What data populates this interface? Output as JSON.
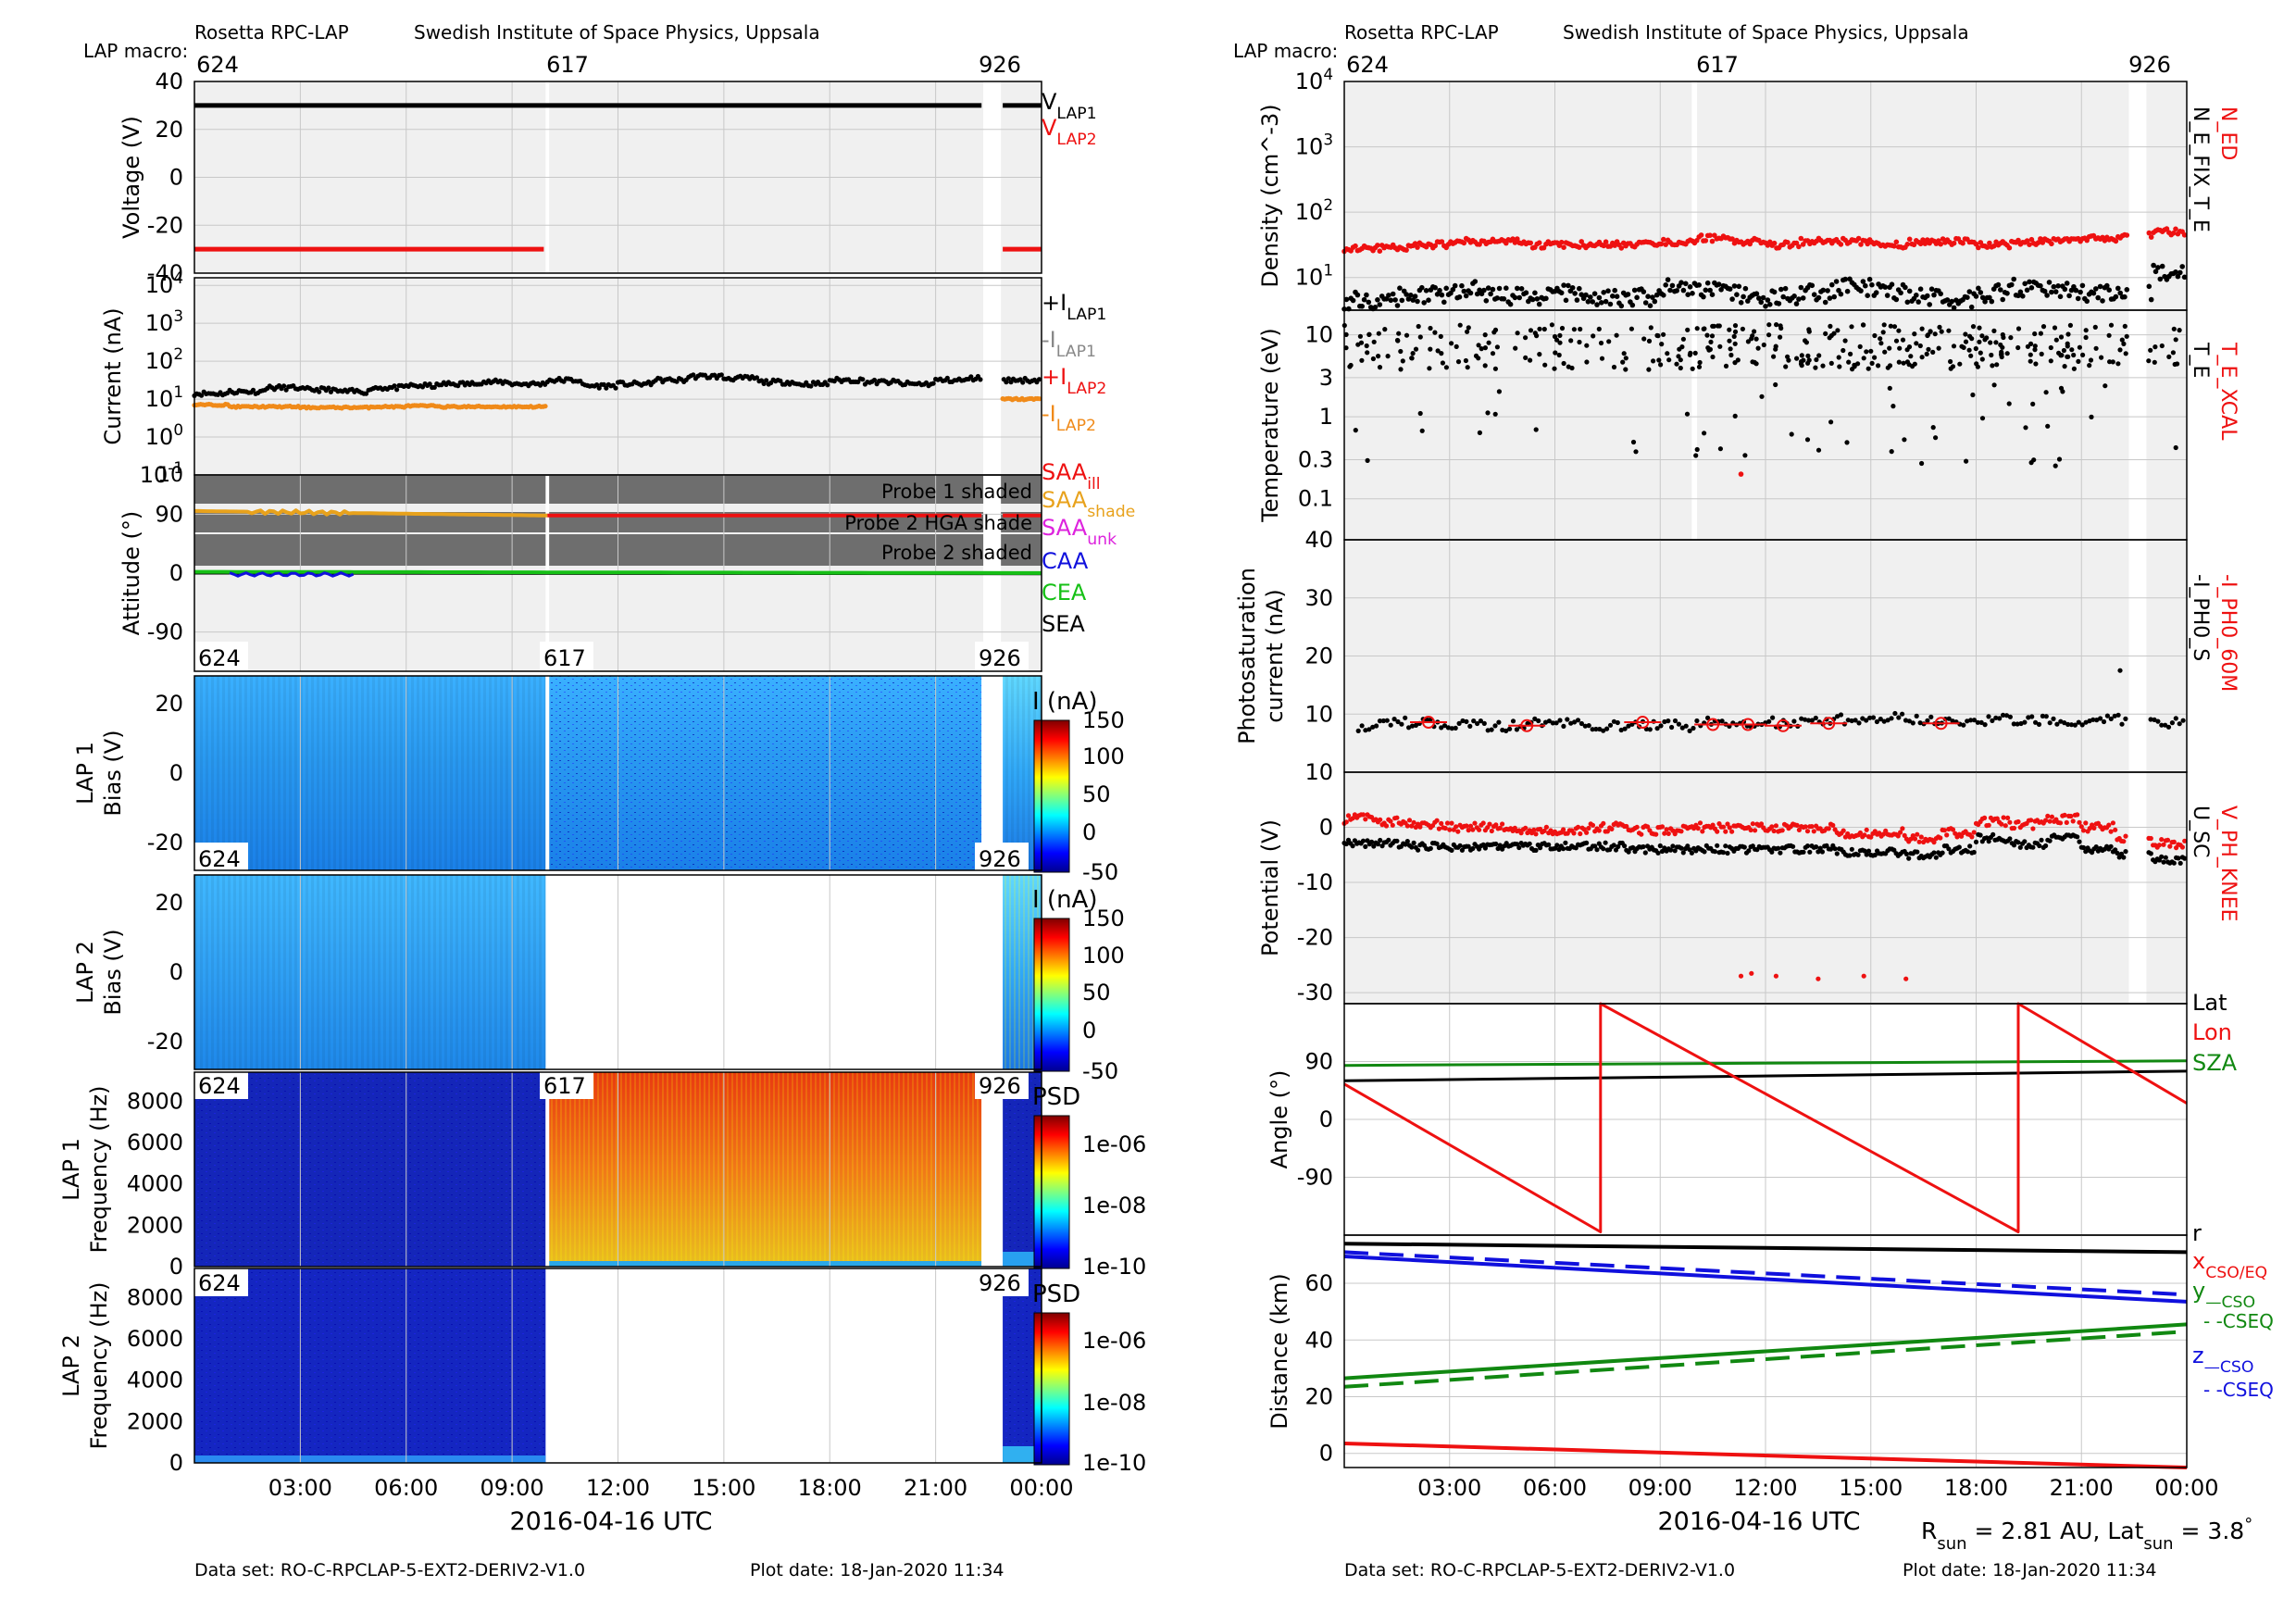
{
  "colors": {
    "black": "#000000",
    "red": "#ee1111",
    "orange": "#f08a19",
    "gray": "#888888",
    "yellow_orange": "#e8a21c",
    "magenta": "#dd22dd",
    "blue": "#1010dd",
    "green": "#16c016",
    "dark_green": "#118811",
    "shade_band": "#6e6e6e",
    "panel_bg": "#f0f0f0",
    "grid": "#c8c8c8"
  },
  "left": {
    "header": {
      "title": "Rosetta RPC-LAP",
      "institute": "Swedish Institute of Space Physics, Uppsala",
      "macro_label": "LAP macro:",
      "macros": [
        "624",
        "617",
        "926"
      ]
    },
    "xaxis": {
      "label": "2016-04-16 UTC",
      "ticks": [
        "03:00",
        "06:00",
        "09:00",
        "12:00",
        "15:00",
        "18:00",
        "21:00",
        "00:00"
      ]
    },
    "footer": {
      "dataset": "Data set: RO-C-RPCLAP-5-EXT2-DERIV2-V1.0",
      "plotdate": "Plot date: 18-Jan-2020 11:34"
    }
  },
  "right": {
    "header": {
      "title": "Rosetta RPC-LAP",
      "institute": "Swedish Institute of Space Physics, Uppsala",
      "macro_label": "LAP macro:",
      "macros": [
        "624",
        "617",
        "926"
      ]
    },
    "xaxis": {
      "label": "2016-04-16 UTC",
      "ticks": [
        "03:00",
        "06:00",
        "09:00",
        "12:00",
        "15:00",
        "18:00",
        "21:00",
        "00:00"
      ]
    },
    "rsun_text": "R_sun = 2.81 AU, Lat_sun = 3.8°",
    "footer": {
      "dataset": "Data set: RO-C-RPCLAP-5-EXT2-DERIV2-V1.0",
      "plotdate": "Plot date: 18-Jan-2020 11:34"
    }
  },
  "chart_data": [
    {
      "id": "voltage",
      "type": "line",
      "ylabel": "Voltage (V)",
      "yticks": [
        "40",
        "20",
        "0",
        "-20",
        "-40"
      ],
      "ylim": [
        -40,
        40
      ],
      "legend": [
        "V_LAP1",
        "V_LAP2"
      ],
      "series": [
        {
          "name": "V_LAP1",
          "color": "black",
          "segments": [
            [
              [
                0.0,
                30
              ],
              [
                22.3,
                30
              ]
            ],
            [
              [
                22.9,
                30
              ],
              [
                24.0,
                30
              ]
            ]
          ]
        },
        {
          "name": "V_LAP2",
          "color": "red",
          "segments": [
            [
              [
                0.0,
                -30
              ],
              [
                9.9,
                -30
              ]
            ],
            [
              [
                22.9,
                -30
              ],
              [
                24.0,
                -30
              ]
            ]
          ]
        }
      ]
    },
    {
      "id": "current",
      "type": "scatter",
      "ylabel": "Current (nA)",
      "yscale": "log",
      "yticks": [
        "10^4",
        "10^3",
        "10^2",
        "10^1",
        "10^0",
        "10^-1"
      ],
      "ylim_log10": [
        -1,
        4
      ],
      "legend": [
        "+I_LAP1",
        "-I_LAP1",
        "+I_LAP2",
        "-I_LAP2"
      ],
      "series": [
        {
          "name": "+I_LAP1",
          "color": "black",
          "values_log10_est": [
            1.15,
            1.2,
            1.3,
            1.25,
            1.2,
            1.3,
            1.35,
            1.4,
            1.45,
            1.4,
            1.5,
            1.35,
            1.4,
            1.5,
            1.6,
            1.55,
            1.45,
            1.4,
            1.5,
            1.45,
            1.4,
            1.5,
            1.55,
            1.5
          ]
        },
        {
          "name": "+I_LAP2",
          "color": "orange",
          "values_log10_est": [
            0.85,
            0.8,
            0.8,
            0.78,
            0.78,
            0.8,
            0.82,
            0.8,
            0.8,
            0.8,
            0.95,
            0.98,
            1.0
          ]
        }
      ]
    },
    {
      "id": "attitude",
      "type": "line",
      "ylabel": "Attitude (°)",
      "yticks": [
        "90",
        "0",
        "-90"
      ],
      "ylim": [
        -150,
        150
      ],
      "shaded_bands": [
        "Probe 1 shaded",
        "Probe 2 HGA shade",
        "Probe 2 shaded"
      ],
      "legend": [
        "SAA_ill",
        "SAA_shade",
        "SAA_unk",
        "CAA",
        "CEA",
        "SEA"
      ],
      "series": [
        {
          "name": "SAA_shade",
          "color": "yellow_orange",
          "segments": [
            [
              [
                0.0,
                95
              ],
              [
                10.0,
                88
              ]
            ]
          ]
        },
        {
          "name": "SAA_ill",
          "color": "red",
          "segments": [
            [
              [
                10.0,
                88
              ],
              [
                24.0,
                88
              ]
            ]
          ]
        },
        {
          "name": "CEA",
          "color": "green",
          "segments": [
            [
              [
                0.0,
                2
              ],
              [
                24.0,
                0
              ]
            ]
          ]
        },
        {
          "name": "CAA",
          "color": "blue",
          "segments": [
            [
              [
                1.0,
                -2
              ],
              [
                4.5,
                -2
              ]
            ]
          ]
        },
        {
          "name": "SEA",
          "color": "black",
          "segments": [
            [
              [
                0.0,
                -1
              ],
              [
                24.0,
                -1
              ]
            ]
          ]
        }
      ]
    },
    {
      "id": "lap1_bias",
      "type": "heatmap",
      "ylabel": "LAP 1 Bias (V)",
      "yticks": [
        "20",
        "0",
        "-20"
      ],
      "colorbar": {
        "label": "I (nA)",
        "ticks": [
          "150",
          "100",
          "50",
          "0",
          "-50"
        ]
      },
      "macros": [
        "624",
        "617",
        "926"
      ]
    },
    {
      "id": "lap2_bias",
      "type": "heatmap",
      "ylabel": "LAP 2 Bias (V)",
      "yticks": [
        "20",
        "0",
        "-20"
      ],
      "colorbar": {
        "label": "I (nA)",
        "ticks": [
          "150",
          "100",
          "50",
          "0",
          "-50"
        ]
      },
      "macros": [
        "624",
        "926"
      ]
    },
    {
      "id": "lap1_freq",
      "type": "heatmap",
      "ylabel": "LAP 1 Frequency (Hz)",
      "yticks": [
        "8000",
        "6000",
        "4000",
        "2000",
        "0"
      ],
      "colorbar": {
        "label": "PSD",
        "ticks": [
          "1e-06",
          "1e-08",
          "1e-10"
        ]
      },
      "macros": [
        "624",
        "617",
        "926"
      ]
    },
    {
      "id": "lap2_freq",
      "type": "heatmap",
      "ylabel": "LAP 2 Frequency (Hz)",
      "yticks": [
        "8000",
        "6000",
        "4000",
        "2000",
        "0"
      ],
      "colorbar": {
        "label": "PSD",
        "ticks": [
          "1e-06",
          "1e-08",
          "1e-10"
        ]
      },
      "macros": [
        "624",
        "926"
      ]
    },
    {
      "id": "density",
      "type": "scatter",
      "ylabel": "Density (cm^-3)",
      "yscale": "log",
      "yticks": [
        "10^4",
        "10^3",
        "10^2",
        "10^1"
      ],
      "ylim_log10": [
        0.5,
        4
      ],
      "legend": [
        "N_ED",
        "N_E_FIX_T_E"
      ],
      "series": [
        {
          "name": "N_ED",
          "color": "red",
          "values_log10_est": [
            1.45,
            1.45,
            1.5,
            1.55,
            1.55,
            1.5,
            1.5,
            1.5,
            1.5,
            1.55,
            1.6,
            1.55,
            1.5,
            1.55,
            1.55,
            1.5,
            1.55,
            1.55,
            1.5,
            1.55,
            1.55,
            1.6,
            1.65,
            1.7
          ]
        },
        {
          "name": "N_E_FIX_T_E",
          "color": "black",
          "values_log10_est": [
            0.65,
            0.7,
            0.75,
            0.8,
            0.7,
            0.7,
            0.75,
            0.7,
            0.7,
            0.85,
            0.8,
            0.75,
            0.7,
            0.75,
            0.85,
            0.8,
            0.7,
            0.65,
            0.75,
            0.85,
            0.8,
            0.75,
            0.8,
            1.1
          ]
        }
      ]
    },
    {
      "id": "temperature",
      "type": "scatter",
      "ylabel": "Temperature (eV)",
      "yscale": "log",
      "yticks": [
        "10",
        "3",
        "1",
        "0.3",
        "0.1"
      ],
      "ylim_log10": [
        -1.5,
        1.3
      ],
      "legend": [
        "T_E_XCAL",
        "T_E"
      ]
    },
    {
      "id": "photosat",
      "type": "scatter",
      "ylabel": "Photosaturation current (nA)",
      "yticks": [
        "40",
        "30",
        "20",
        "10"
      ],
      "ylim": [
        0,
        40
      ],
      "legend": [
        "-I_PH0_60M",
        "-I_PH0_S"
      ],
      "series": [
        {
          "name": "-I_PH0_S",
          "color": "black",
          "values_est": [
            8,
            8.5,
            8.5,
            8,
            8,
            8.5,
            8.5,
            8,
            8,
            8,
            8.5,
            8,
            8.5,
            9,
            9,
            9.5,
            9,
            9,
            9,
            9,
            9,
            9,
            9,
            8.5
          ]
        },
        {
          "name": "-I_PH0_60M",
          "color": "red",
          "x_hours": [
            2.4,
            5.2,
            8.5,
            10.5,
            11.5,
            12.5,
            13.8,
            17.0
          ],
          "values_est": [
            8.6,
            8.0,
            8.6,
            8.2,
            8.2,
            8.0,
            8.4,
            8.4
          ]
        }
      ]
    },
    {
      "id": "potential",
      "type": "scatter",
      "ylabel": "Potential (V)",
      "yticks": [
        "10",
        "0",
        "-10",
        "-20",
        "-30"
      ],
      "ylim": [
        -32,
        10
      ],
      "legend": [
        "V_PH_KNEE",
        "U_SC"
      ],
      "series": [
        {
          "name": "V_PH_KNEE",
          "color": "red",
          "values_est": [
            1.5,
            1,
            0.5,
            0,
            0,
            -0.5,
            -0.5,
            0,
            -0.5,
            -0.5,
            0,
            0,
            0,
            0,
            -1,
            -1,
            -2,
            -1,
            1,
            0.5,
            1.5,
            0,
            -2,
            -3
          ]
        },
        {
          "name": "U_SC",
          "color": "black",
          "values_est": [
            -3,
            -3,
            -3.5,
            -3.5,
            -3.5,
            -3.5,
            -3.5,
            -3.5,
            -4,
            -4,
            -4,
            -4,
            -4,
            -4,
            -4.5,
            -4.5,
            -5,
            -4,
            -2,
            -3,
            -2,
            -4,
            -5,
            -6
          ]
        }
      ]
    },
    {
      "id": "angle",
      "type": "line",
      "ylabel": "Angle (°)",
      "yticks": [
        "90",
        "0",
        "-90"
      ],
      "ylim": [
        -180,
        180
      ],
      "legend": [
        "Lat",
        "Lon",
        "SZA"
      ],
      "series": [
        {
          "name": "Lat",
          "color": "black",
          "points": [
            [
              0,
              60
            ],
            [
              24,
              75
            ]
          ]
        },
        {
          "name": "SZA",
          "color": "dark_green",
          "points": [
            [
              0,
              84
            ],
            [
              24,
              91
            ]
          ]
        },
        {
          "name": "Lon",
          "color": "red",
          "points": [
            [
              0,
              55
            ],
            [
              7.3,
              -175
            ],
            [
              7.3,
              180
            ],
            [
              19.2,
              -175
            ],
            [
              19.2,
              180
            ],
            [
              24,
              25
            ]
          ]
        }
      ]
    },
    {
      "id": "distance",
      "type": "line",
      "ylabel": "Distance (km)",
      "yticks": [
        "60",
        "40",
        "20",
        "0"
      ],
      "ylim": [
        -5,
        77
      ],
      "legend": [
        "r",
        "x_CSO/EQ",
        "y_CSO",
        "y_CSEQ",
        "z_CSO",
        "z_CSEQ"
      ],
      "series": [
        {
          "name": "r",
          "color": "black",
          "dash": false,
          "points": [
            [
              0,
              74
            ],
            [
              24,
              71
            ]
          ]
        },
        {
          "name": "z_CSO",
          "color": "blue",
          "dash": false,
          "points": [
            [
              0,
              69.5
            ],
            [
              24,
              53.5
            ]
          ]
        },
        {
          "name": "z_CSEQ",
          "color": "blue",
          "dash": true,
          "points": [
            [
              0,
              71
            ],
            [
              24,
              56
            ]
          ]
        },
        {
          "name": "y_CSO",
          "color": "dark_green",
          "dash": false,
          "points": [
            [
              0,
              26.5
            ],
            [
              24,
              45.5
            ]
          ]
        },
        {
          "name": "y_CSEQ",
          "color": "dark_green",
          "dash": true,
          "points": [
            [
              0,
              23.5
            ],
            [
              24,
              43
            ]
          ]
        },
        {
          "name": "x_CSO/EQ",
          "color": "red",
          "dash": false,
          "points": [
            [
              0,
              3.5
            ],
            [
              24,
              -5
            ]
          ]
        }
      ]
    }
  ]
}
